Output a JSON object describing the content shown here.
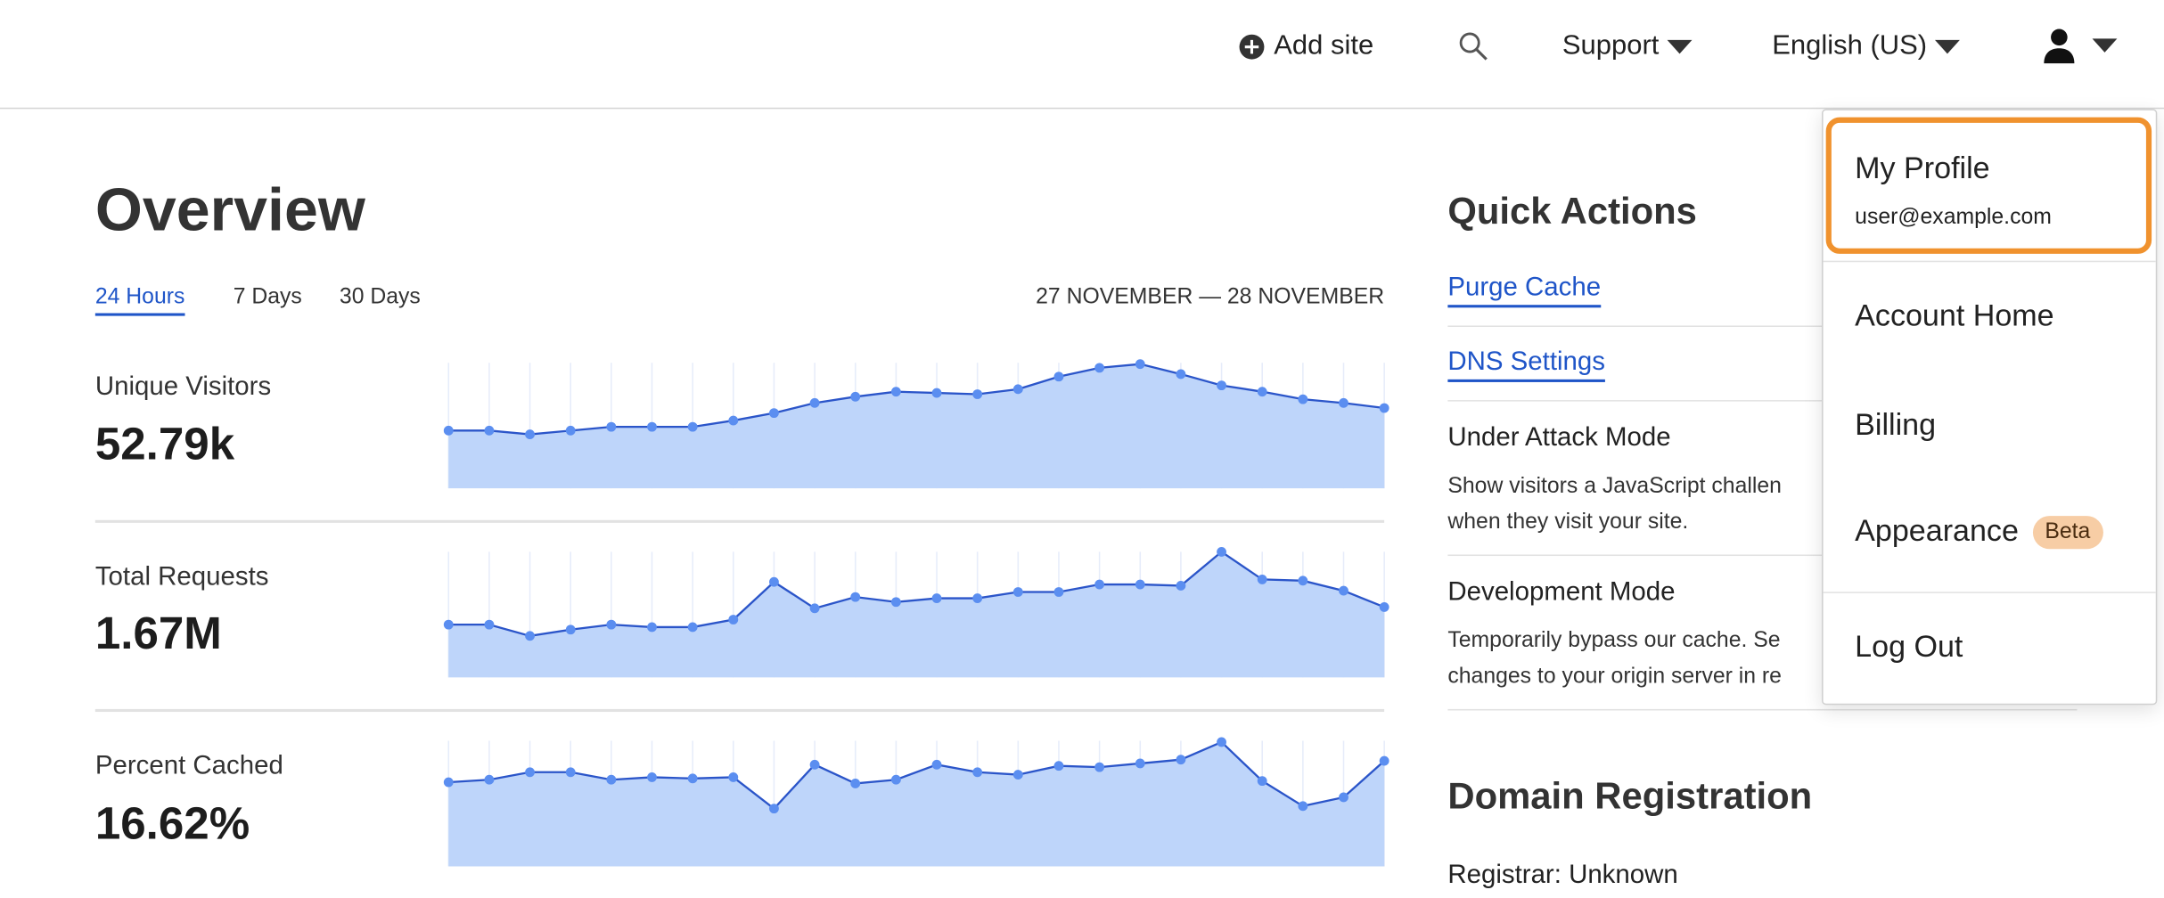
{
  "header": {
    "add_site": "Add site",
    "support": "Support",
    "language": "English (US)"
  },
  "overview": {
    "title": "Overview",
    "tabs": [
      "24 Hours",
      "7 Days",
      "30 Days"
    ],
    "active_tab": "24 Hours",
    "date_range": "27 NOVEMBER — 28 NOVEMBER",
    "metrics": [
      {
        "label": "Unique Visitors",
        "value": "52.79k"
      },
      {
        "label": "Total Requests",
        "value": "1.67M"
      },
      {
        "label": "Percent Cached",
        "value": "16.62%"
      }
    ]
  },
  "quick_actions": {
    "title": "Quick Actions",
    "links": [
      "Purge Cache",
      "DNS Settings"
    ],
    "items": [
      {
        "title": "Under Attack Mode",
        "desc1": "Show visitors a JavaScript challen",
        "desc2": "when they visit your site."
      },
      {
        "title": "Development Mode",
        "desc1": "Temporarily bypass our cache. Se",
        "desc2": "changes to your origin server in re"
      }
    ]
  },
  "domain_registration": {
    "title": "Domain Registration",
    "registrar": "Registrar: Unknown"
  },
  "user_menu": {
    "profile": "My Profile",
    "email": "user@example.com",
    "items": [
      "Account Home",
      "Billing",
      "Appearance",
      "Log Out"
    ],
    "beta_badge": "Beta",
    "highlight_color": "#f0922e"
  },
  "colors": {
    "accent": "#1f55c8",
    "area_fill": "#bed5fa",
    "line": "#2b55c9",
    "point": "#5b8ef0"
  },
  "chart_data": [
    {
      "type": "area",
      "series_label": "Unique Visitors",
      "ylim": [
        0,
        100
      ],
      "grid": "vertical",
      "values": [
        46,
        46,
        43,
        46,
        49,
        49,
        49,
        54,
        60,
        68,
        73,
        77,
        76,
        75,
        79,
        89,
        96,
        99,
        91,
        82,
        77,
        71,
        68,
        64
      ]
    },
    {
      "type": "area",
      "series_label": "Total Requests",
      "ylim": [
        0,
        100
      ],
      "grid": "vertical",
      "values": [
        42,
        42,
        33,
        38,
        42,
        40,
        40,
        46,
        76,
        55,
        64,
        60,
        63,
        63,
        68,
        68,
        74,
        74,
        73,
        100,
        78,
        77,
        69,
        56
      ]
    },
    {
      "type": "area",
      "series_label": "Percent Cached",
      "ylim": [
        0,
        100
      ],
      "grid": "vertical",
      "values": [
        67,
        69,
        75,
        75,
        69,
        71,
        70,
        71,
        46,
        81,
        66,
        69,
        81,
        75,
        73,
        80,
        79,
        82,
        85,
        99,
        68,
        48,
        55,
        84
      ]
    }
  ]
}
